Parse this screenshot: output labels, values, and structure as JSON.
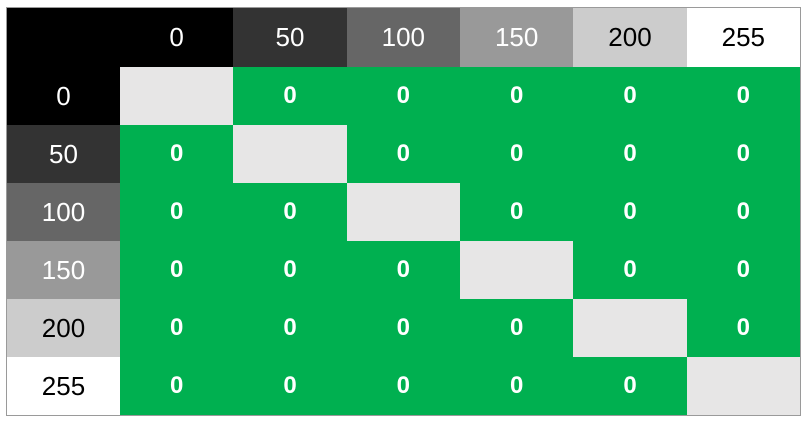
{
  "levels": [
    "0",
    "50",
    "100",
    "150",
    "200",
    "255"
  ],
  "level_colors": [
    "#000000",
    "#333333",
    "#666666",
    "#999999",
    "#cccccc",
    "#ffffff"
  ],
  "level_text_colors": [
    "#ffffff",
    "#ffffff",
    "#ffffff",
    "#ffffff",
    "#000000",
    "#000000"
  ],
  "corner_color": "#000000",
  "cell_color": "#00b050",
  "diagonal_color": "#e7e6e6",
  "matrix": [
    [
      "",
      "0",
      "0",
      "0",
      "0",
      "0"
    ],
    [
      "0",
      "",
      "0",
      "0",
      "0",
      "0"
    ],
    [
      "0",
      "0",
      "",
      "0",
      "0",
      "0"
    ],
    [
      "0",
      "0",
      "0",
      "",
      "0",
      "0"
    ],
    [
      "0",
      "0",
      "0",
      "0",
      "",
      "0"
    ],
    [
      "0",
      "0",
      "0",
      "0",
      "0",
      ""
    ]
  ]
}
